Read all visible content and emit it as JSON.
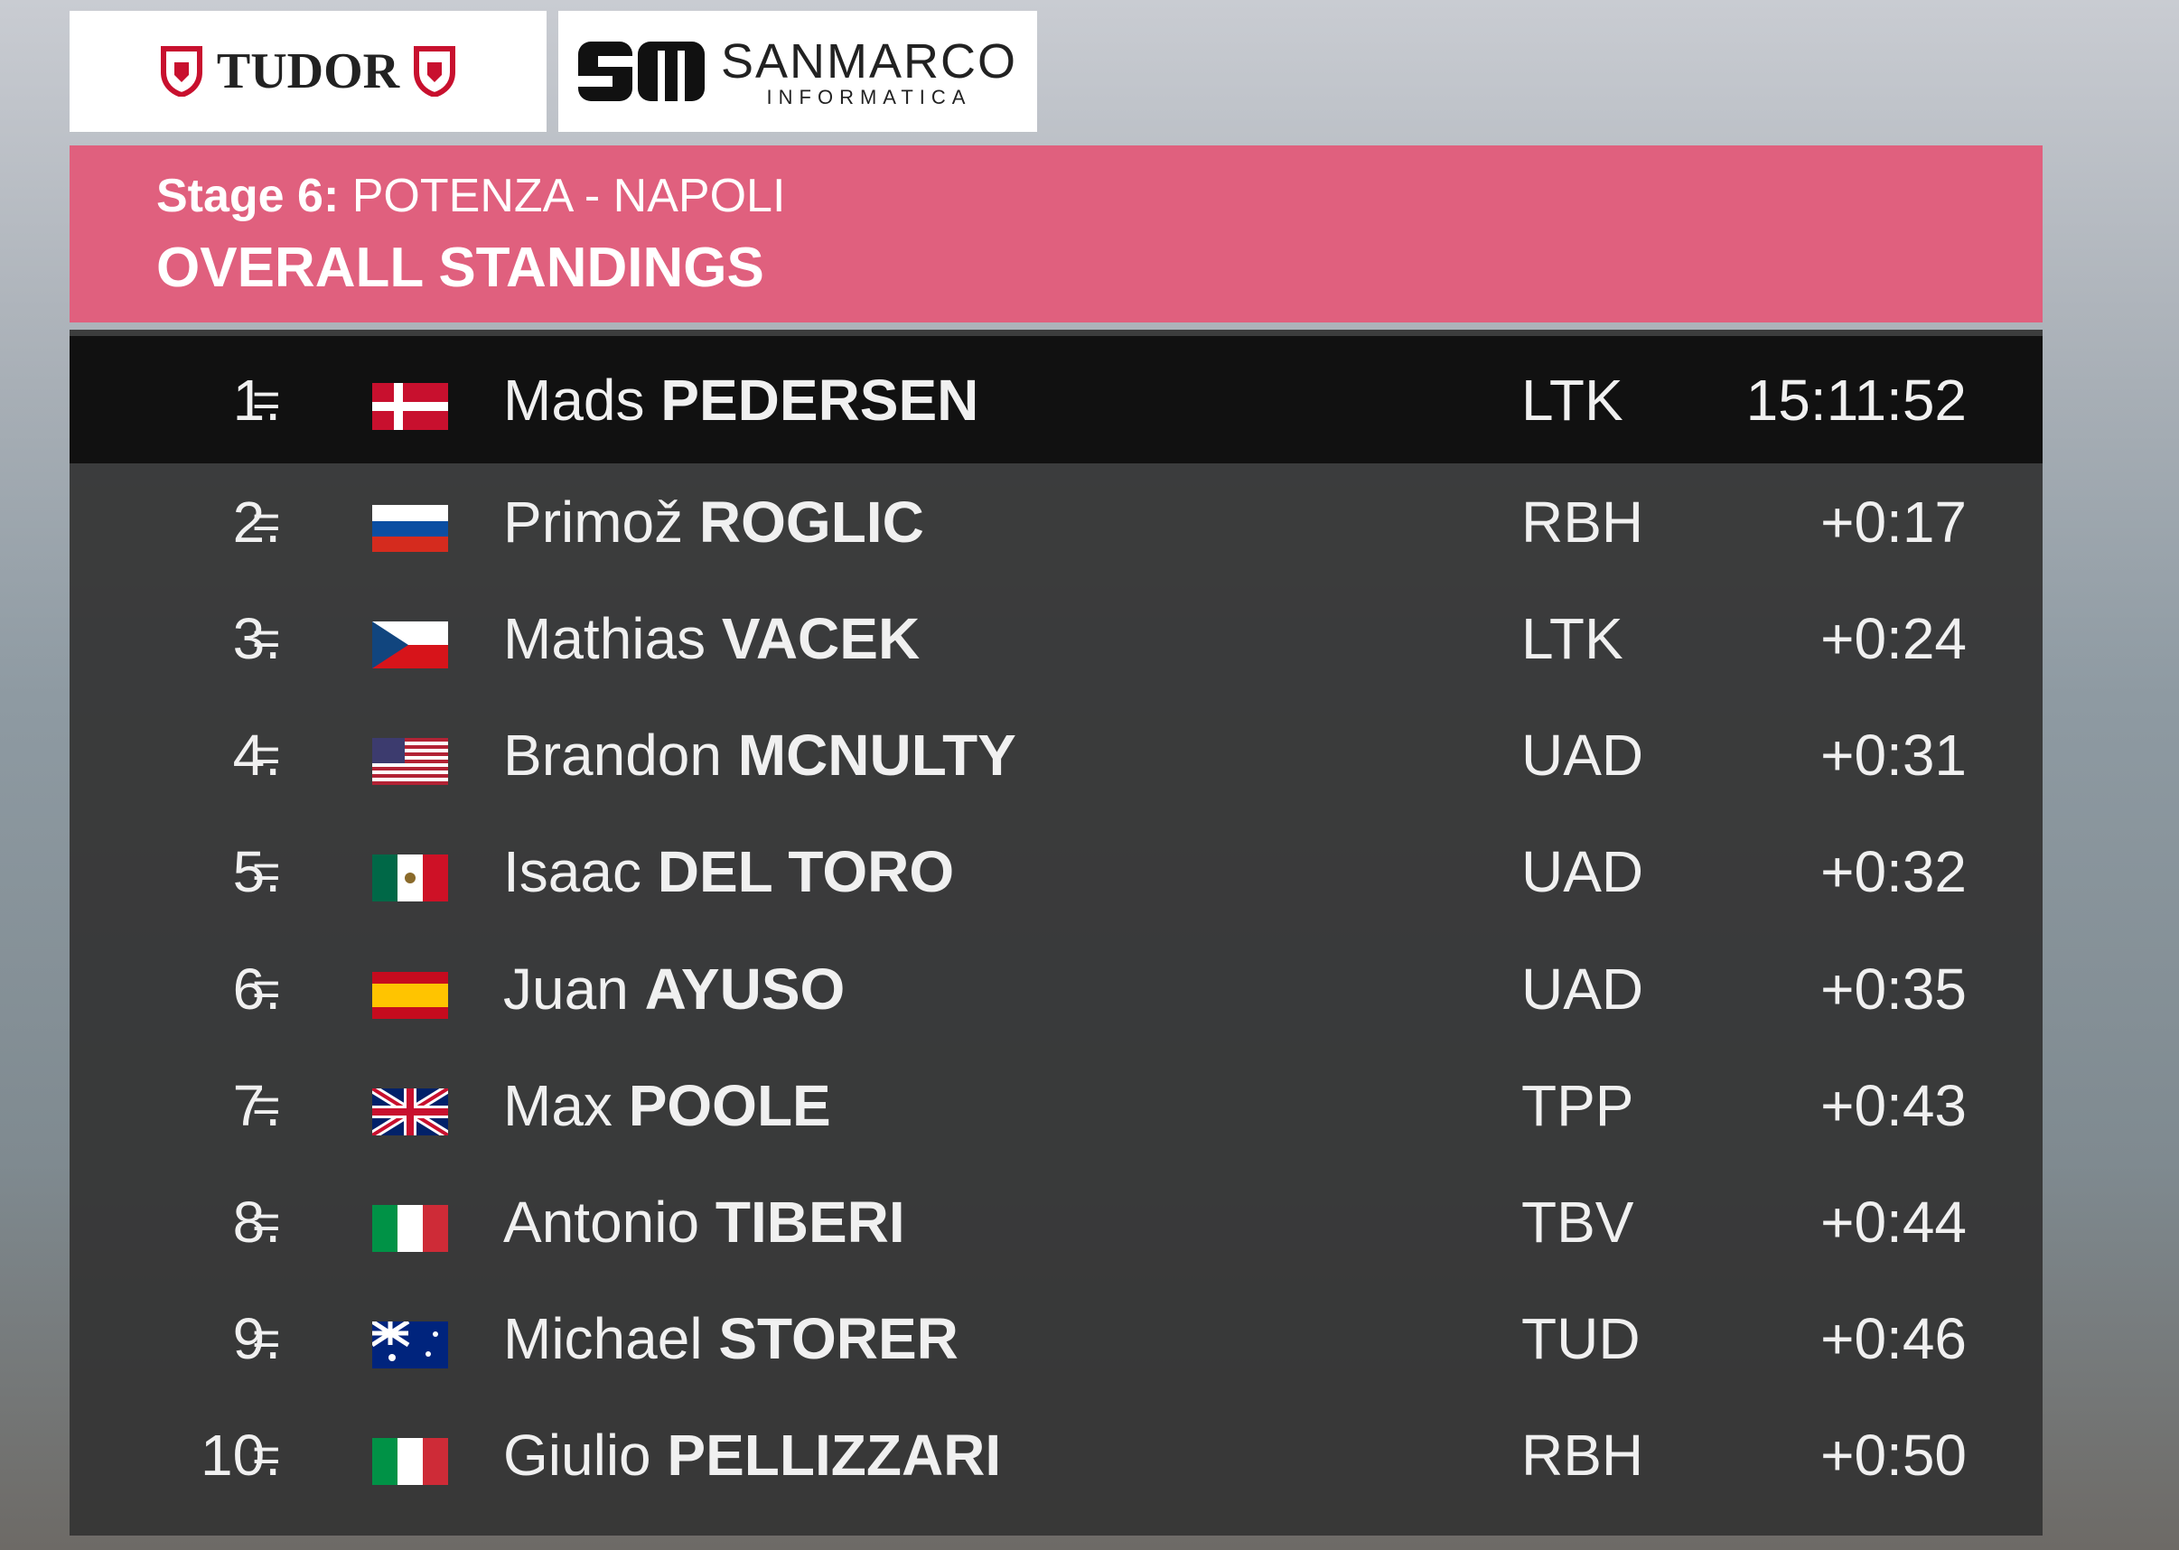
{
  "sponsors": {
    "left": "TUDOR",
    "right_name": "SANMARCO",
    "right_sub": "INFORMATICA"
  },
  "header": {
    "stage": "Stage 6:",
    "route": "POTENZA - NAPOLI",
    "title": "OVERALL STANDINGS"
  },
  "table": {
    "rows": [
      {
        "rank": "1.",
        "change": "=",
        "first_name": "Mads",
        "last_name": "PEDERSEN",
        "team": "LTK",
        "time": "15:11:52"
      },
      {
        "rank": "2.",
        "change": "=",
        "first_name": "Primož",
        "last_name": "ROGLIC",
        "team": "RBH",
        "time": "+0:17"
      },
      {
        "rank": "3.",
        "change": "=",
        "first_name": "Mathias",
        "last_name": "VACEK",
        "team": "LTK",
        "time": "+0:24"
      },
      {
        "rank": "4.",
        "change": "=",
        "first_name": "Brandon",
        "last_name": "MCNULTY",
        "team": "UAD",
        "time": "+0:31"
      },
      {
        "rank": "5.",
        "change": "=",
        "first_name": "Isaac",
        "last_name": "DEL TORO",
        "team": "UAD",
        "time": "+0:32"
      },
      {
        "rank": "6.",
        "change": "=",
        "first_name": "Juan",
        "last_name": "AYUSO",
        "team": "UAD",
        "time": "+0:35"
      },
      {
        "rank": "7.",
        "change": "=",
        "first_name": "Max",
        "last_name": "POOLE",
        "team": "TPP",
        "time": "+0:43"
      },
      {
        "rank": "8.",
        "change": "=",
        "first_name": "Antonio",
        "last_name": "TIBERI",
        "team": "TBV",
        "time": "+0:44"
      },
      {
        "rank": "9.",
        "change": "=",
        "first_name": "Michael",
        "last_name": "STORER",
        "team": "TUD",
        "time": "+0:46"
      },
      {
        "rank": "10.",
        "change": "=",
        "first_name": "Giulio",
        "last_name": "PELLIZZARI",
        "team": "RBH",
        "time": "+0:50"
      }
    ]
  }
}
